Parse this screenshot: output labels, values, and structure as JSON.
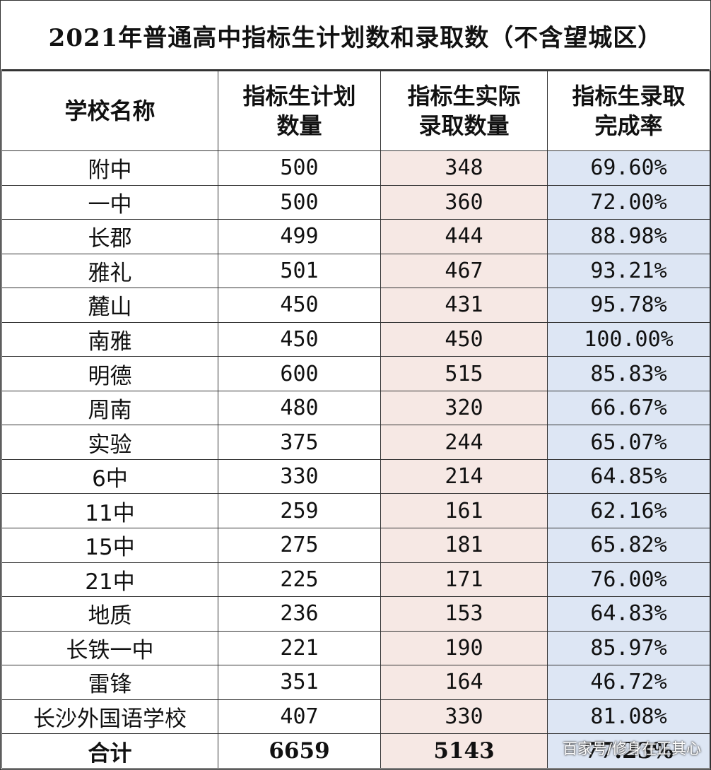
{
  "title": "2021年普通高中指标生计划数和录取数（不含望城区）",
  "headers": {
    "school": "学校名称",
    "plan_line1": "指标生计划",
    "plan_line2": "数量",
    "actual_line1": "指标生实际",
    "actual_line2": "录取数量",
    "rate_line1": "指标生录取",
    "rate_line2": "完成率"
  },
  "rows": [
    {
      "school": "附中",
      "plan": "500",
      "actual": "348",
      "rate": "69.60%"
    },
    {
      "school": "一中",
      "plan": "500",
      "actual": "360",
      "rate": "72.00%"
    },
    {
      "school": "长郡",
      "plan": "499",
      "actual": "444",
      "rate": "88.98%"
    },
    {
      "school": "雅礼",
      "plan": "501",
      "actual": "467",
      "rate": "93.21%"
    },
    {
      "school": "麓山",
      "plan": "450",
      "actual": "431",
      "rate": "95.78%"
    },
    {
      "school": "南雅",
      "plan": "450",
      "actual": "450",
      "rate": "100.00%"
    },
    {
      "school": "明德",
      "plan": "600",
      "actual": "515",
      "rate": "85.83%"
    },
    {
      "school": "周南",
      "plan": "480",
      "actual": "320",
      "rate": "66.67%"
    },
    {
      "school": "实验",
      "plan": "375",
      "actual": "244",
      "rate": "65.07%"
    },
    {
      "school": "6中",
      "plan": "330",
      "actual": "214",
      "rate": "64.85%"
    },
    {
      "school": "11中",
      "plan": "259",
      "actual": "161",
      "rate": "62.16%"
    },
    {
      "school": "15中",
      "plan": "275",
      "actual": "181",
      "rate": "65.82%"
    },
    {
      "school": "21中",
      "plan": "225",
      "actual": "171",
      "rate": "76.00%"
    },
    {
      "school": "地质",
      "plan": "236",
      "actual": "153",
      "rate": "64.83%"
    },
    {
      "school": "长铁一中",
      "plan": "221",
      "actual": "190",
      "rate": "85.97%"
    },
    {
      "school": "雷锋",
      "plan": "351",
      "actual": "164",
      "rate": "46.72%"
    },
    {
      "school": "长沙外国语学校",
      "plan": "407",
      "actual": "330",
      "rate": "81.08%"
    }
  ],
  "total": {
    "school": "合计",
    "plan": "6659",
    "actual": "5143",
    "rate": "77.23%"
  },
  "watermark": "百家号/修身在正其心",
  "colors": {
    "actual_fill": "#f6e8e4",
    "rate_fill": "#dde6f4"
  }
}
